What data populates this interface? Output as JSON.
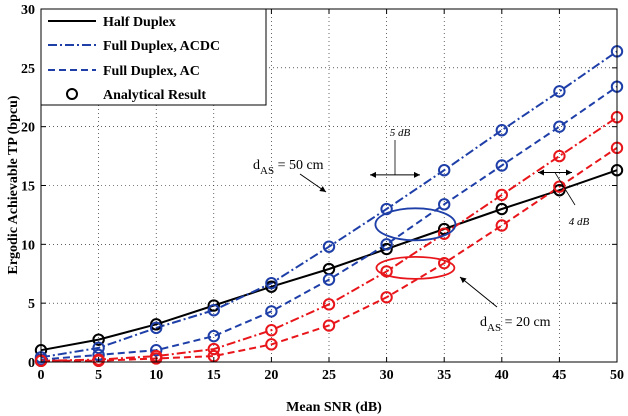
{
  "chart_data": {
    "type": "line",
    "title": "",
    "xlabel": "Mean SNR (dB)",
    "ylabel": "Ergodic Achievable TP (bpcu)",
    "xlim": [
      0,
      50
    ],
    "ylim": [
      0,
      30
    ],
    "x_ticks": [
      "0",
      "5",
      "10",
      "15",
      "20",
      "25",
      "30",
      "35",
      "40",
      "45",
      "50"
    ],
    "y_ticks": [
      "0",
      "5",
      "10",
      "15",
      "20",
      "25",
      "30"
    ],
    "grid": true,
    "legend_position": "top-left",
    "legend": [
      "Half Duplex",
      "Full Duplex, ACDC",
      "Full Duplex, AC",
      "Analytical Result"
    ],
    "x": [
      0,
      5,
      10,
      15,
      20,
      25,
      30,
      35,
      40,
      45,
      50
    ],
    "series": [
      {
        "name": "Half Duplex",
        "group": "",
        "style": "solid",
        "color": "#000000",
        "values": [
          1.0,
          1.9,
          3.2,
          4.8,
          6.4,
          7.9,
          9.6,
          11.3,
          13.0,
          14.6,
          16.3
        ]
      },
      {
        "name": "Full Duplex, ACDC",
        "group": "d_AS = 50 cm",
        "style": "dashdot",
        "color": "#1f3fa8",
        "values": [
          0.4,
          1.2,
          2.9,
          4.4,
          6.7,
          9.8,
          13.0,
          16.3,
          19.7,
          23.0,
          26.4
        ]
      },
      {
        "name": "Full Duplex, AC",
        "group": "d_AS = 50 cm",
        "style": "dash",
        "color": "#1f3fa8",
        "values": [
          0.2,
          0.6,
          1.0,
          2.2,
          4.3,
          7.0,
          10.0,
          13.4,
          16.7,
          20.0,
          23.4
        ]
      },
      {
        "name": "Full Duplex, ACDC",
        "group": "d_AS = 20 cm",
        "style": "dashdot",
        "color": "#e8161b",
        "values": [
          0.1,
          0.2,
          0.5,
          1.1,
          2.7,
          4.9,
          7.7,
          10.9,
          14.2,
          17.5,
          20.8
        ]
      },
      {
        "name": "Full Duplex, AC",
        "group": "d_AS = 20 cm",
        "style": "dash",
        "color": "#e8161b",
        "values": [
          0.1,
          0.1,
          0.3,
          0.5,
          1.5,
          3.1,
          5.5,
          8.4,
          11.6,
          14.9,
          18.2
        ]
      }
    ],
    "annotations": {
      "d50": {
        "prefix": "d",
        "sub": "AS",
        "suffix": " = 50 cm"
      },
      "d20": {
        "prefix": "d",
        "sub": "AS",
        "suffix": " = 20 cm"
      },
      "gap5": "5 dB",
      "gap4": "4 dB"
    }
  }
}
